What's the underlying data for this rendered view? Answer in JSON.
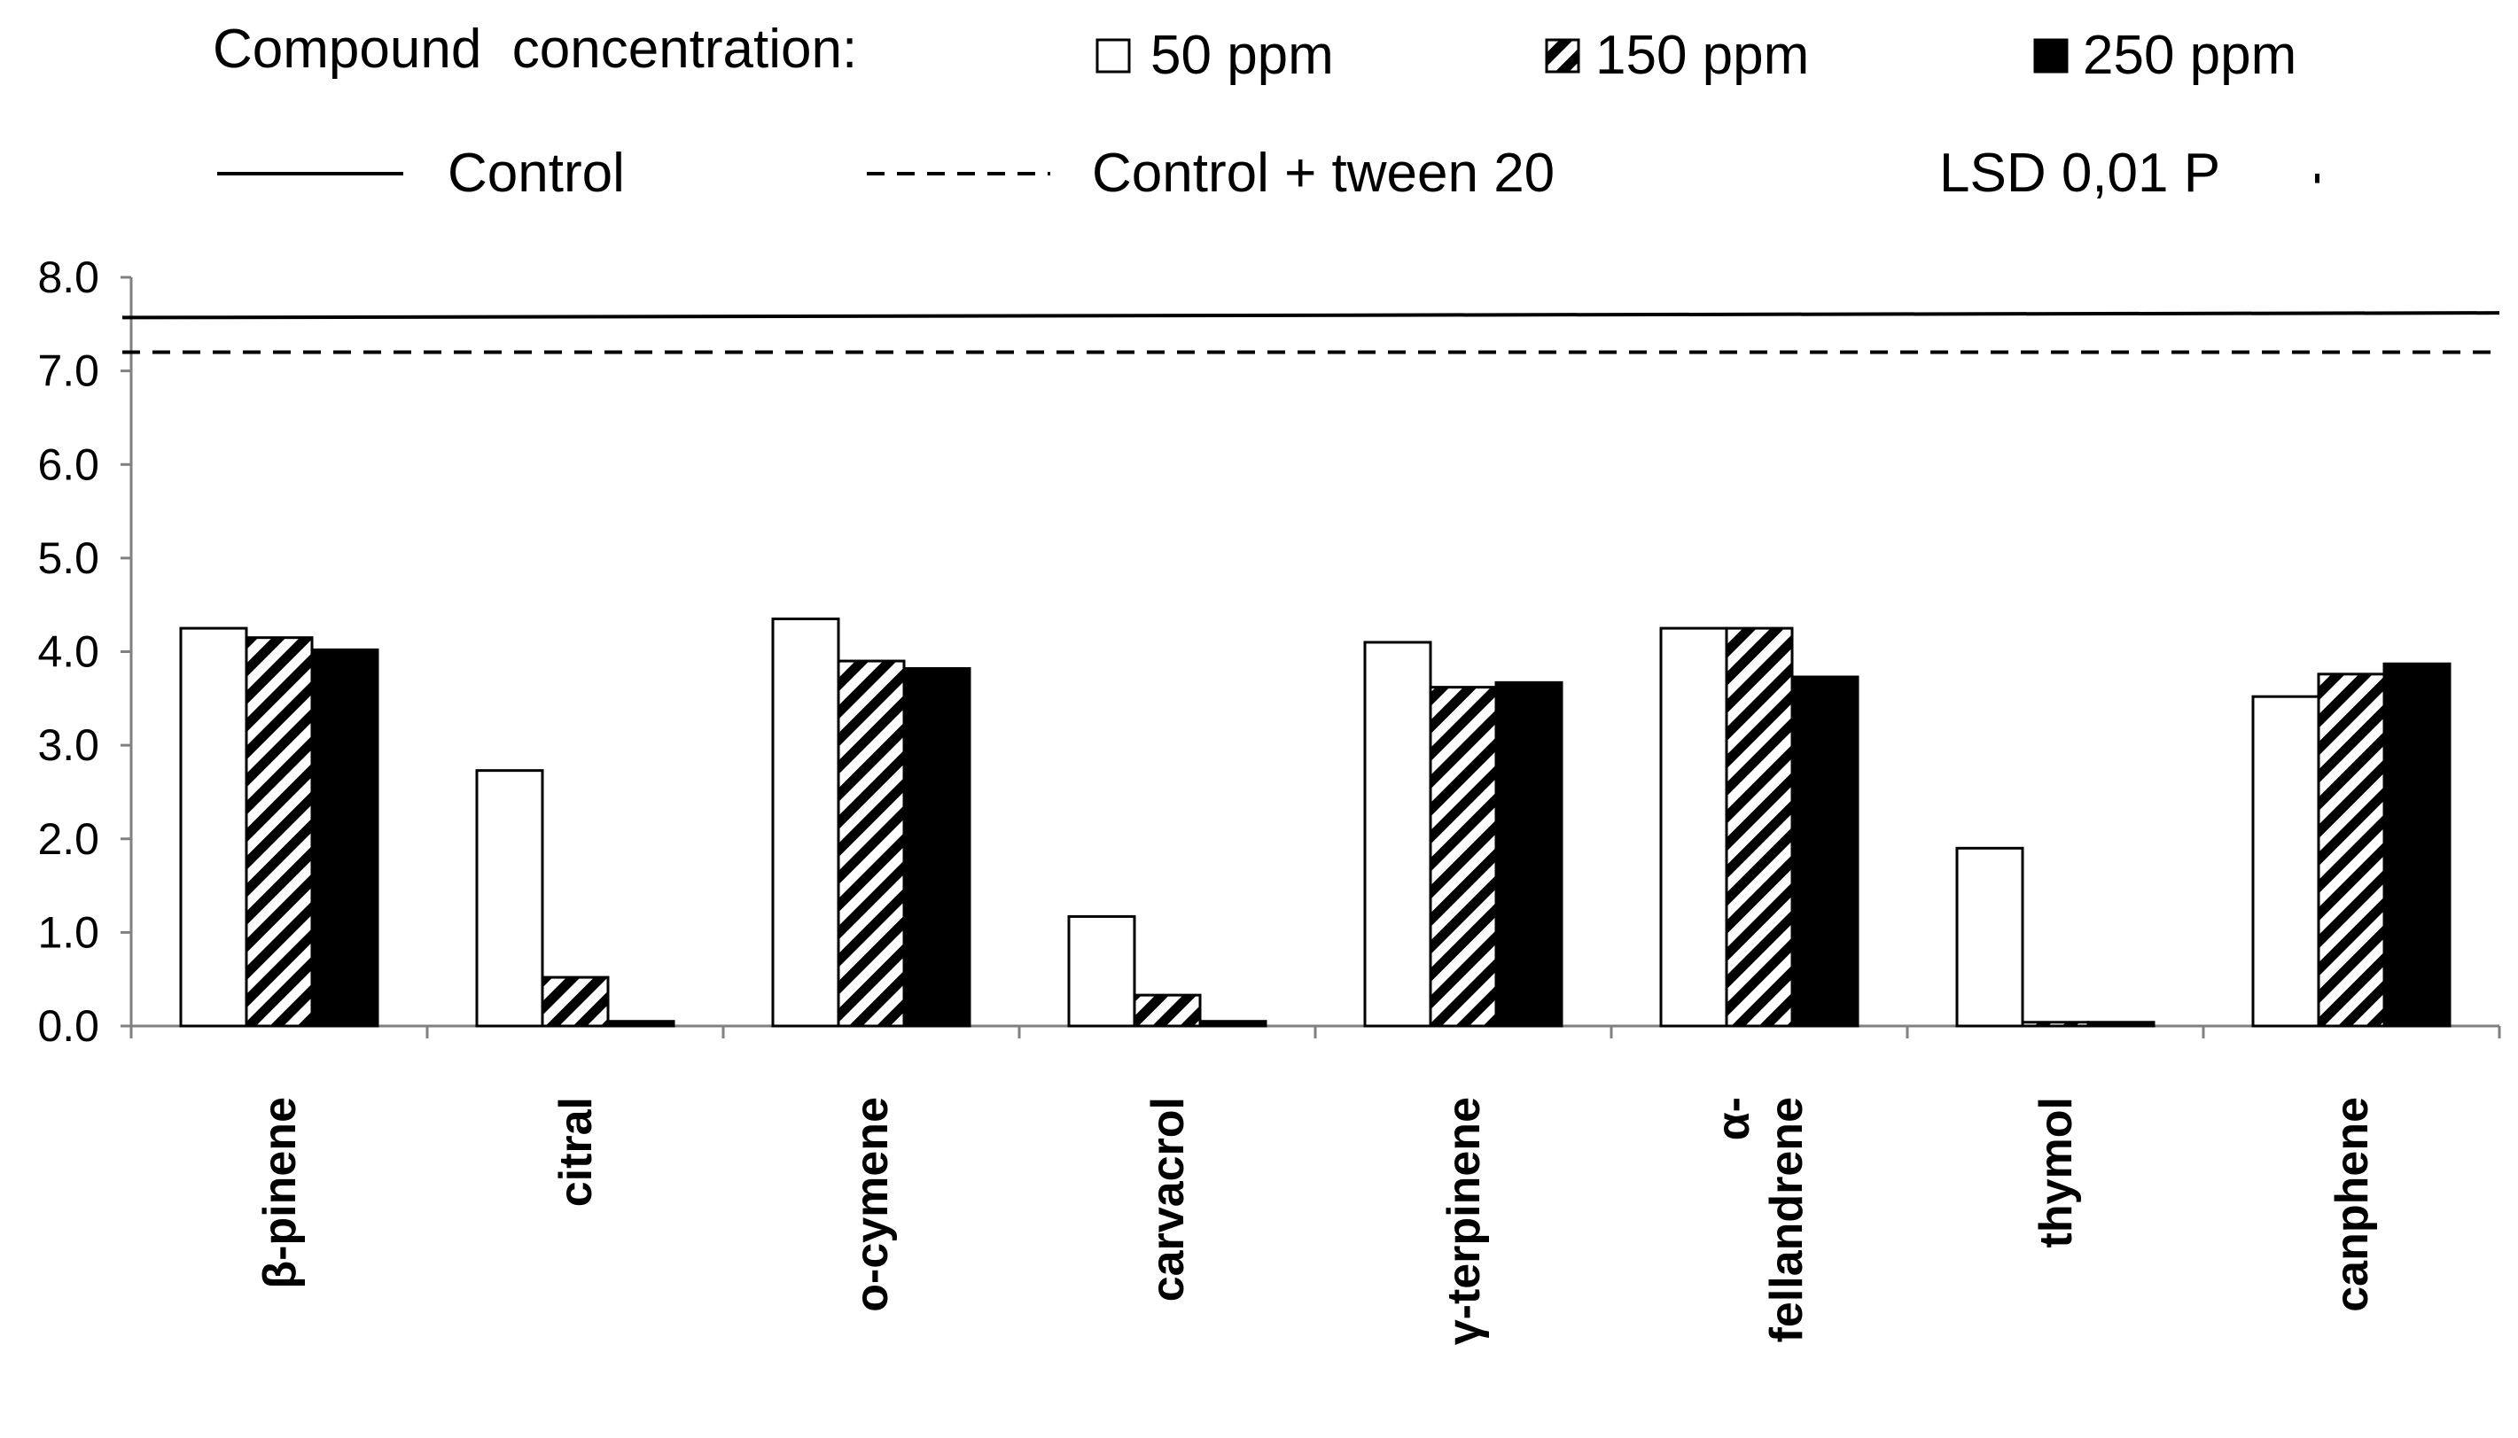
{
  "chart_data": {
    "type": "bar",
    "legend_title": "Compound  concentration:",
    "categories": [
      {
        "label": [
          "β-pinene"
        ]
      },
      {
        "label": [
          "citral"
        ]
      },
      {
        "label": [
          "o-cymene"
        ]
      },
      {
        "label": [
          "carvacrol"
        ]
      },
      {
        "label": [
          "γ-terpinene"
        ]
      },
      {
        "label": [
          "α-",
          "fellandrene"
        ]
      },
      {
        "label": [
          "thymol"
        ]
      },
      {
        "label": [
          "canphene"
        ]
      }
    ],
    "series": [
      {
        "name": "50 ppm",
        "pattern": "white",
        "values": [
          4.25,
          2.73,
          4.35,
          1.17,
          4.1,
          4.25,
          1.9,
          3.52
        ]
      },
      {
        "name": "150 ppm",
        "pattern": "hatched",
        "values": [
          4.15,
          0.52,
          3.9,
          0.33,
          3.62,
          4.25,
          0.04,
          3.76
        ]
      },
      {
        "name": "250 ppm",
        "pattern": "black",
        "values": [
          4.02,
          0.05,
          3.82,
          0.05,
          3.67,
          3.73,
          0.04,
          3.87
        ]
      }
    ],
    "reference_lines": [
      {
        "name": "Control",
        "style": "solid",
        "value_start": 7.57,
        "value_end": 7.62
      },
      {
        "name": "Control + tween 20",
        "style": "dashed",
        "value": 7.2
      }
    ],
    "lsd_label": "LSD 0,01 P",
    "lsd_value": 0.1,
    "ylim": [
      0,
      8
    ],
    "yticks": [
      "0.0",
      "1.0",
      "2.0",
      "3.0",
      "4.0",
      "5.0",
      "6.0",
      "7.0",
      "8.0"
    ],
    "colors": {
      "bar_stroke": "#000000",
      "black_bar": "#000000",
      "white_bar": "#ffffff",
      "axis": "#808080"
    }
  }
}
